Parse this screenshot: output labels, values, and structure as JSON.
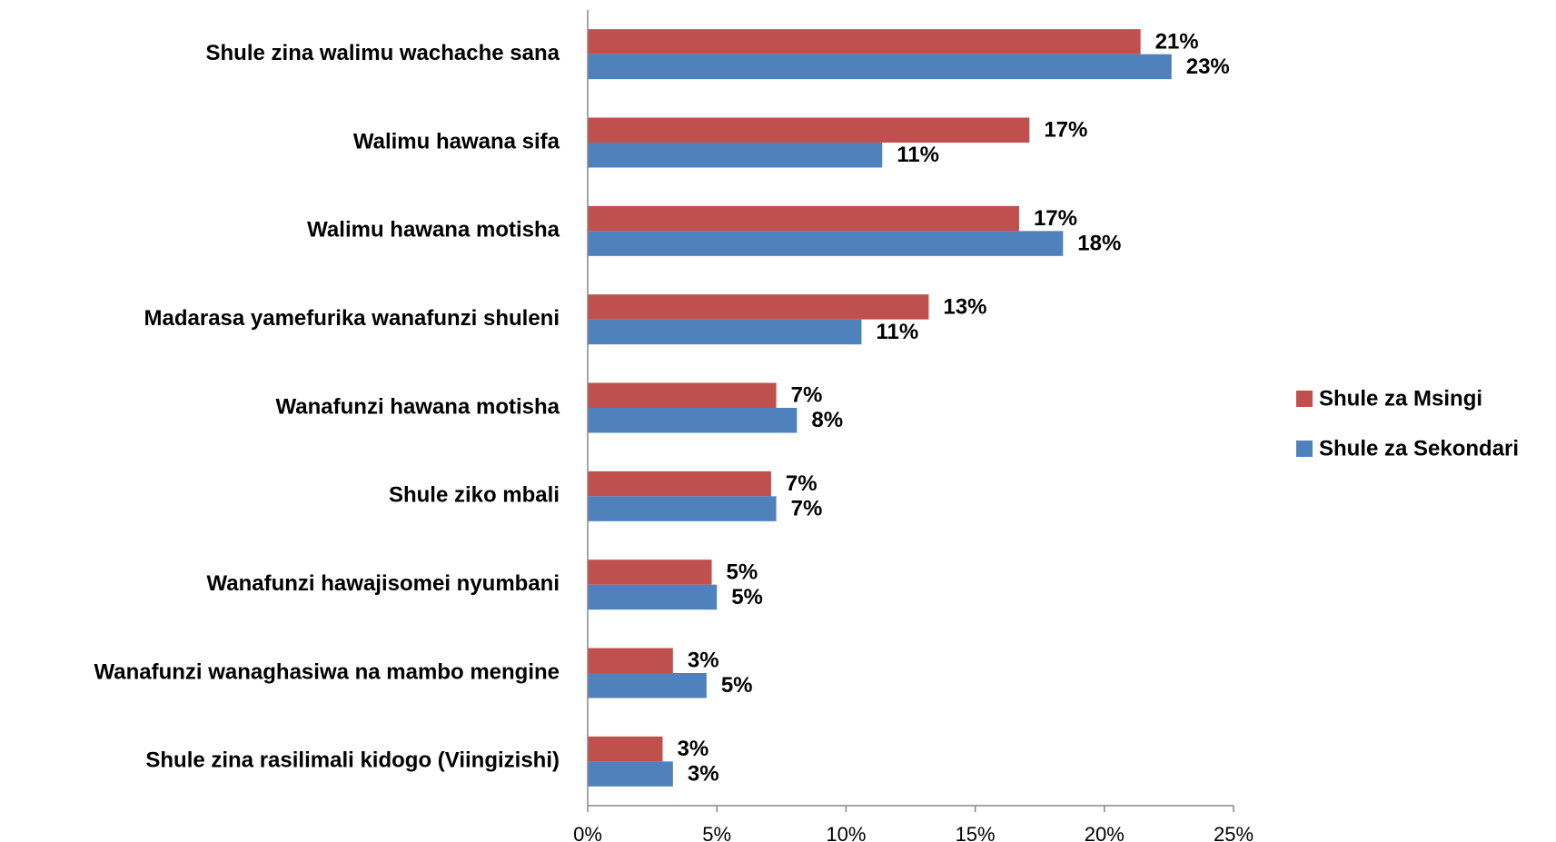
{
  "chart_data": {
    "type": "hbar",
    "categories": [
      "Shule zina walimu wachache sana",
      "Walimu hawana sifa",
      "Walimu hawana motisha",
      "Madarasa yamefurika wanafunzi shuleni",
      "Wanafunzi hawana motisha",
      "Shule ziko mbali",
      "Wanafunzi hawajisomei nyumbani",
      "Wanafunzi wanaghasiwa na mambo mengine",
      "Shule zina rasilimali kidogo (Viingizishi)"
    ],
    "series": [
      {
        "name": "Shule za Msingi",
        "color": "#c0504d",
        "values": [
          21.4,
          17.1,
          16.7,
          13.2,
          7.3,
          7.1,
          4.8,
          3.3,
          2.9
        ],
        "value_labels": [
          "21%",
          "17%",
          "17%",
          "13%",
          "7%",
          "7%",
          "5%",
          "3%",
          "3%"
        ]
      },
      {
        "name": "Shule za Sekondari",
        "color": "#4f81bd",
        "values": [
          22.6,
          11.4,
          18.4,
          10.6,
          8.1,
          7.3,
          5.0,
          4.6,
          3.3
        ],
        "value_labels": [
          "23%",
          "11%",
          "18%",
          "11%",
          "8%",
          "7%",
          "5%",
          "5%",
          "3%"
        ]
      }
    ],
    "xlim": [
      0,
      25
    ],
    "xticks": [
      {
        "value": 0,
        "label": "0%"
      },
      {
        "value": 5,
        "label": "5%"
      },
      {
        "value": 10,
        "label": "10%"
      },
      {
        "value": 15,
        "label": "15%"
      },
      {
        "value": 20,
        "label": "20%"
      },
      {
        "value": 25,
        "label": "25%"
      }
    ],
    "legend": "right"
  }
}
